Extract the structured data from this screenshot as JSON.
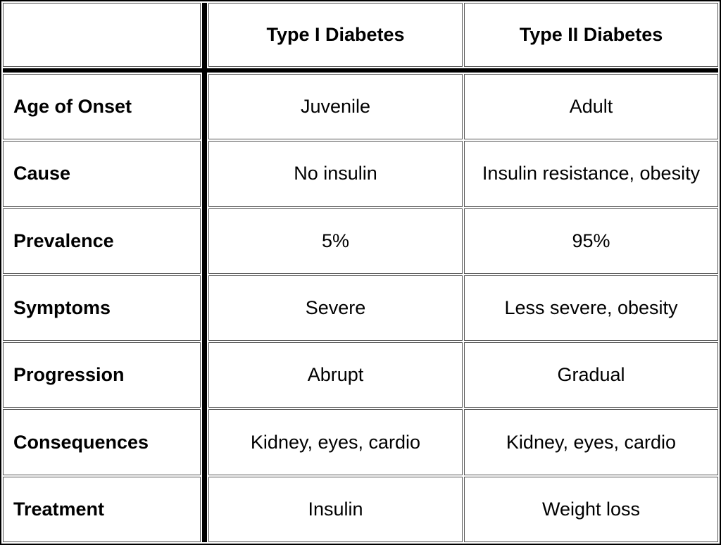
{
  "table": {
    "columns": [
      "Type I Diabetes",
      "Type II Diabetes"
    ],
    "rows": [
      [
        "Age of Onset",
        "Juvenile",
        "Adult"
      ],
      [
        "Cause",
        "No insulin",
        "Insulin resistance, obesity"
      ],
      [
        "Prevalence",
        "5%",
        "95%"
      ],
      [
        "Symptoms",
        "Severe",
        "Less severe, obesity"
      ],
      [
        "Progression",
        "Abrupt",
        "Gradual"
      ],
      [
        "Consequences",
        "Kidney, eyes, cardio",
        "Kidney, eyes, cardio"
      ],
      [
        "Treatment",
        "Insulin",
        "Weight loss"
      ]
    ]
  }
}
